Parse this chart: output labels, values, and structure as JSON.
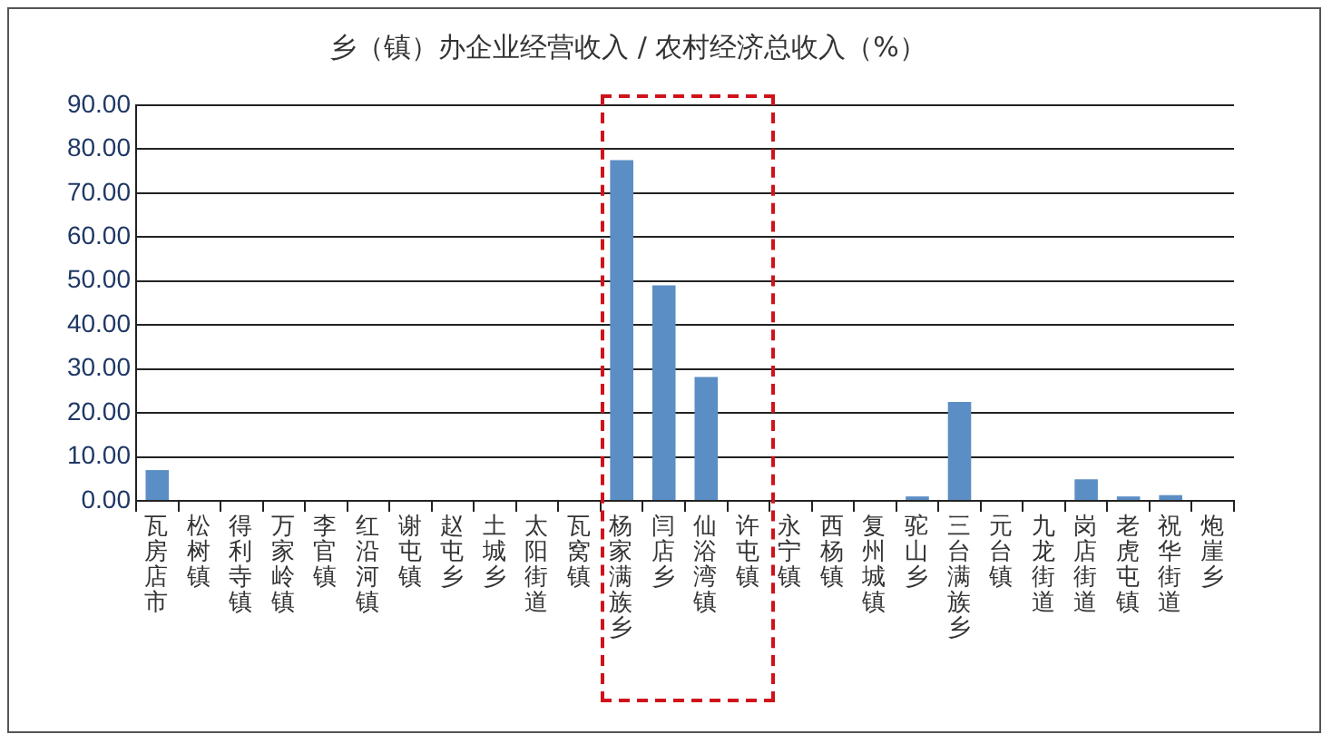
{
  "chart_data": {
    "type": "bar",
    "title": "乡（镇）办企业经营收入 / 农村经济总收入（%）",
    "categories": [
      "瓦房店市",
      "松树镇",
      "得利寺镇",
      "万家岭镇",
      "李官镇",
      "红沿河镇",
      "谢屯镇",
      "赵屯乡",
      "土城乡",
      "太阳街道",
      "瓦窝镇",
      "杨家满族乡",
      "闫店乡",
      "仙浴湾镇",
      "许屯镇",
      "永宁镇",
      "西杨镇",
      "复州城镇",
      "驼山乡",
      "三台满族乡",
      "元台镇",
      "九龙街道",
      "岗店街道",
      "老虎屯镇",
      "祝华街道",
      "炮崖乡"
    ],
    "values": [
      7.0,
      0,
      0,
      0,
      0,
      0,
      0,
      0,
      0,
      0,
      0,
      77.5,
      49.0,
      28.2,
      0,
      0,
      0,
      0,
      1.0,
      22.5,
      0,
      0,
      4.9,
      1.0,
      1.3,
      0
    ],
    "color": "#5b8ec4",
    "ylim": [
      0,
      90
    ],
    "yticks": [
      {
        "value": 0,
        "label": "0.00"
      },
      {
        "value": 10,
        "label": "10.00"
      },
      {
        "value": 20,
        "label": "20.00"
      },
      {
        "value": 30,
        "label": "30.00"
      },
      {
        "value": 40,
        "label": "40.00"
      },
      {
        "value": 50,
        "label": "50.00"
      },
      {
        "value": 60,
        "label": "60.00"
      },
      {
        "value": 70,
        "label": "70.00"
      },
      {
        "value": 80,
        "label": "80.00"
      },
      {
        "value": 90,
        "label": "90.00"
      }
    ],
    "grid": "y"
  }
}
